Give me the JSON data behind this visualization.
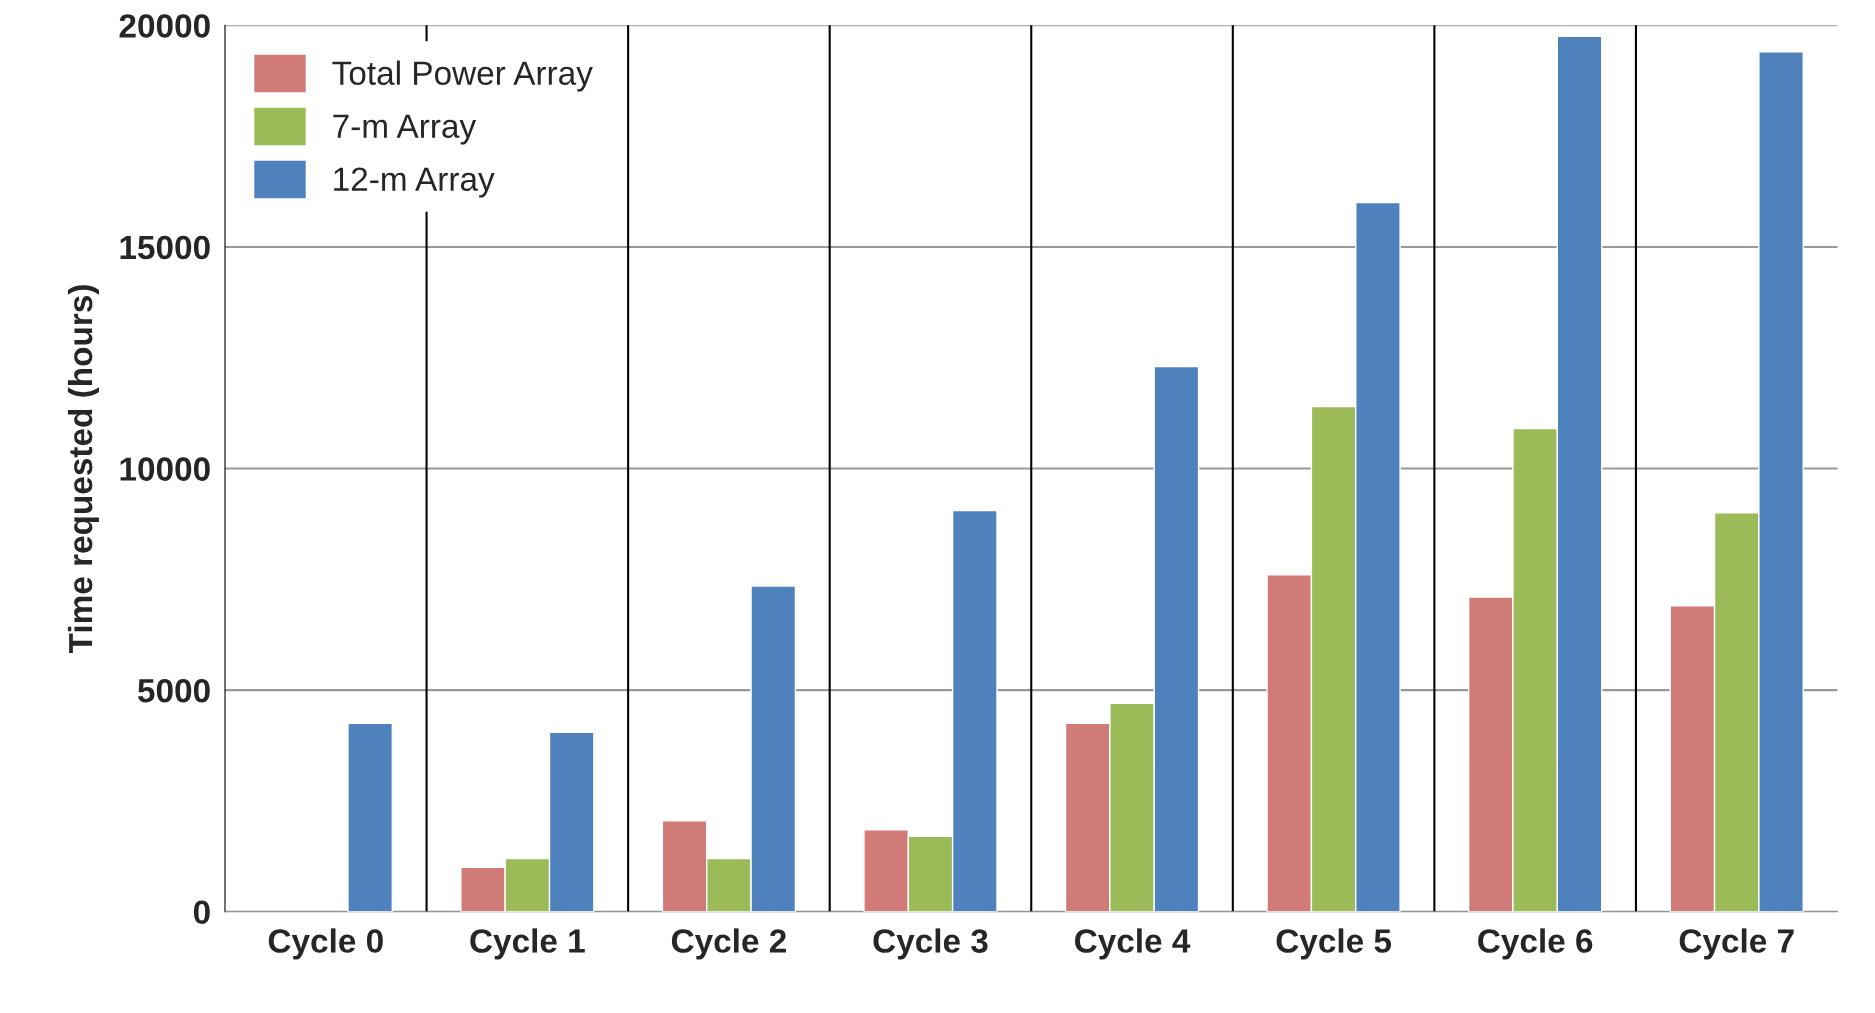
{
  "chart_data": {
    "type": "bar",
    "ylabel": "Time requested (hours)",
    "categories": [
      "Cycle 0",
      "Cycle 1",
      "Cycle 2",
      "Cycle 3",
      "Cycle 4",
      "Cycle 5",
      "Cycle 6",
      "Cycle 7"
    ],
    "series": [
      {
        "name": "Total Power Array",
        "color": "#d07b78",
        "values": [
          null,
          1000,
          2050,
          1850,
          4250,
          7600,
          7100,
          6900
        ]
      },
      {
        "name": "7-m Array",
        "color": "#9bbb59",
        "values": [
          null,
          1200,
          1200,
          1700,
          4700,
          11400,
          10900,
          9000
        ]
      },
      {
        "name": "12-m Array",
        "color": "#4f81bd",
        "values": [
          4250,
          4050,
          7350,
          9050,
          12300,
          16000,
          19750,
          19400
        ]
      }
    ],
    "ylim": [
      0,
      20000
    ],
    "yticks": [
      0,
      5000,
      10000,
      15000,
      20000
    ],
    "grid": true,
    "legend": "top left"
  }
}
